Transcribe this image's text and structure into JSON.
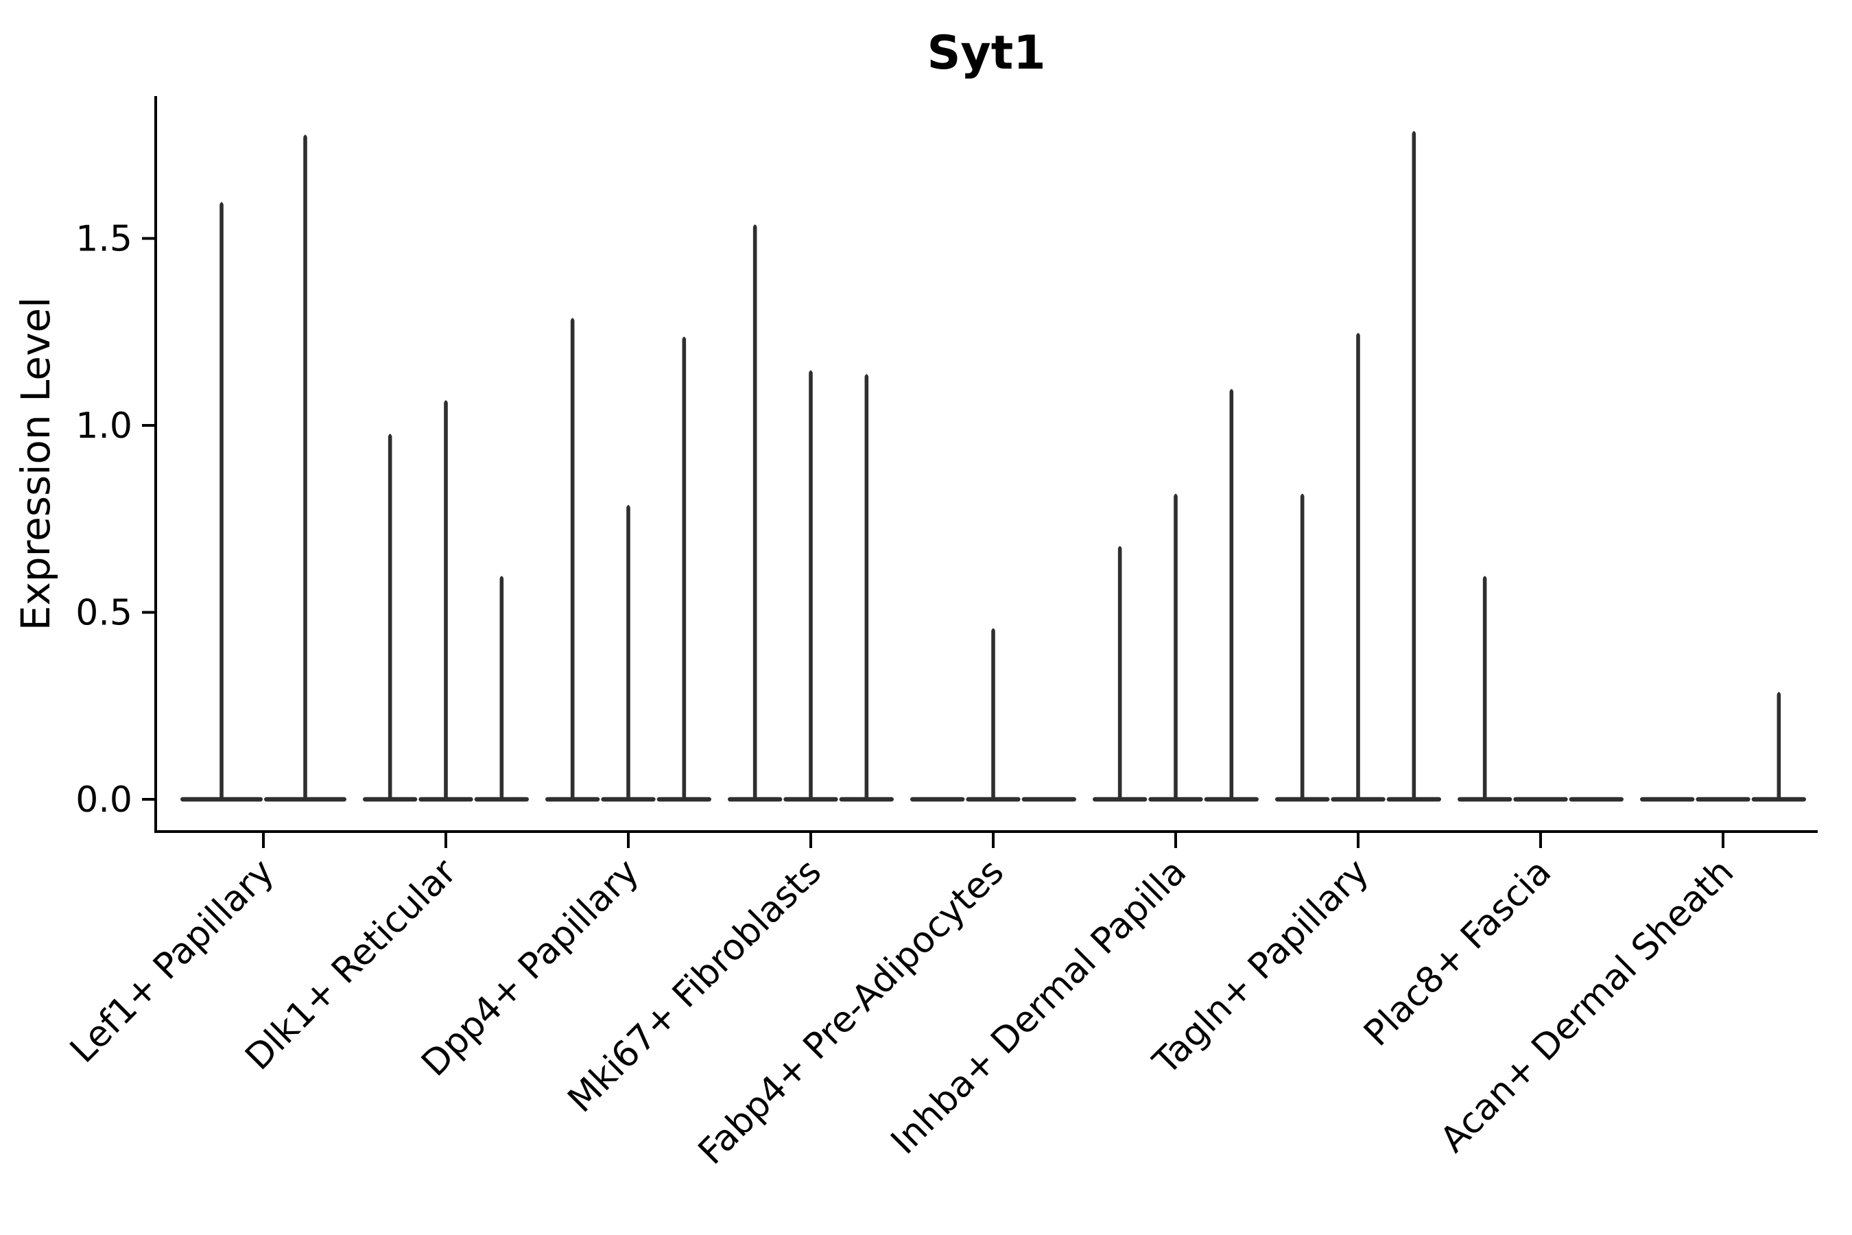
{
  "chart_data": {
    "type": "violin",
    "title": "Syt1",
    "ylabel": "Expression Level",
    "xlabel": "",
    "grid": false,
    "legend": null,
    "ylim": [
      -0.09,
      1.88
    ],
    "yticks": [
      0.0,
      0.5,
      1.0,
      1.5
    ],
    "ytick_labels": [
      "0.0",
      "0.5",
      "1.0",
      "1.5"
    ],
    "x_tick_rotation_degrees": 45,
    "violin_style": "narrow spikes over flat zero-density base (single-cell expression violin plot)",
    "colors": {
      "violin_fill": "#2f2f2f",
      "axis_spine": "#000000",
      "text": "#000000",
      "background": "#ffffff"
    },
    "categories": [
      {
        "label": "Lef1+ Papillary",
        "violins": [
          {
            "max_expression": 1.6
          },
          {
            "max_expression": 1.78
          }
        ]
      },
      {
        "label": "Dlk1+ Reticular",
        "violins": [
          {
            "max_expression": 0.98
          },
          {
            "max_expression": 1.07
          },
          {
            "max_expression": 0.6
          }
        ]
      },
      {
        "label": "Dpp4+ Papillary",
        "violins": [
          {
            "max_expression": 1.29
          },
          {
            "max_expression": 0.79
          },
          {
            "max_expression": 1.24
          }
        ]
      },
      {
        "label": "Mki67+ Fibroblasts",
        "violins": [
          {
            "max_expression": 1.54
          },
          {
            "max_expression": 1.15
          },
          {
            "max_expression": 1.14
          }
        ]
      },
      {
        "label": "Fabp4+ Pre-Adipocytes",
        "violins": [
          {
            "max_expression": 0.0
          },
          {
            "max_expression": 0.46
          },
          {
            "max_expression": 0.0
          }
        ]
      },
      {
        "label": "Inhba+ Dermal Papilla",
        "violins": [
          {
            "max_expression": 0.68
          },
          {
            "max_expression": 0.82
          },
          {
            "max_expression": 1.1
          }
        ]
      },
      {
        "label": "Tagln+ Papillary",
        "violins": [
          {
            "max_expression": 0.82
          },
          {
            "max_expression": 1.25
          },
          {
            "max_expression": 1.79
          }
        ]
      },
      {
        "label": "Plac8+ Fascia",
        "violins": [
          {
            "max_expression": 0.6
          },
          {
            "max_expression": 0.0
          },
          {
            "max_expression": 0.0
          }
        ]
      },
      {
        "label": "Acan+ Dermal Sheath",
        "violins": [
          {
            "max_expression": 0.0
          },
          {
            "max_expression": 0.0
          },
          {
            "max_expression": 0.29
          }
        ]
      }
    ]
  }
}
